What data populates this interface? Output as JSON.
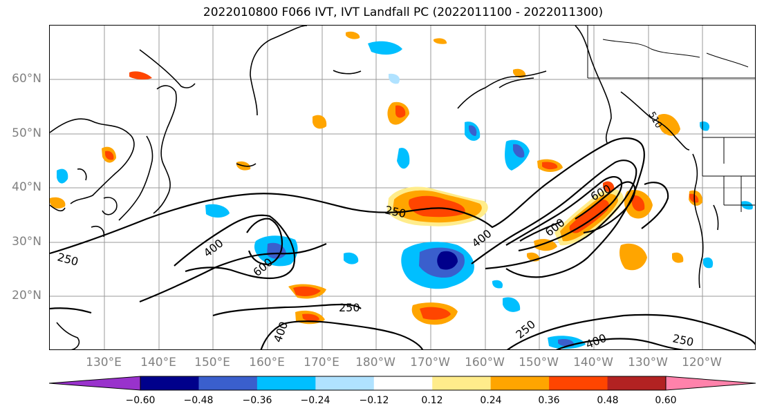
{
  "title": "2022010800 F066 IVT, IVT Landfall PC (2022011100 - 2022011300)",
  "lat_labels": [
    "60°N",
    "50°N",
    "40°N",
    "30°N",
    "20°N"
  ],
  "lon_labels": [
    "130°E",
    "140°E",
    "150°E",
    "160°E",
    "170°E",
    "180°W",
    "170°W",
    "160°W",
    "150°W",
    "140°W",
    "130°W",
    "120°W"
  ],
  "contour_labels": {
    "c250_west": "250",
    "c400_west": "400",
    "c600_west": "600",
    "c250_mid": "250",
    "c400_mid": "400",
    "c600_mid": "600",
    "c600_east": "600",
    "c250_south": "250",
    "c400_south": "400",
    "c250_se": "250",
    "c400_se": "400",
    "c250_far": "250",
    "c510": "510"
  },
  "colorbar": {
    "ticks": [
      "−0.60",
      "−0.48",
      "−0.36",
      "−0.24",
      "−0.12",
      "0.12",
      "0.24",
      "0.36",
      "0.48",
      "0.60"
    ],
    "colors": [
      "#9932cc",
      "#00008b",
      "#3a5fcd",
      "#00bfff",
      "#b0e2ff",
      "#ffffff",
      "#ffec8b",
      "#ffa500",
      "#ff4500",
      "#b22222",
      "#ff82ab"
    ]
  }
}
